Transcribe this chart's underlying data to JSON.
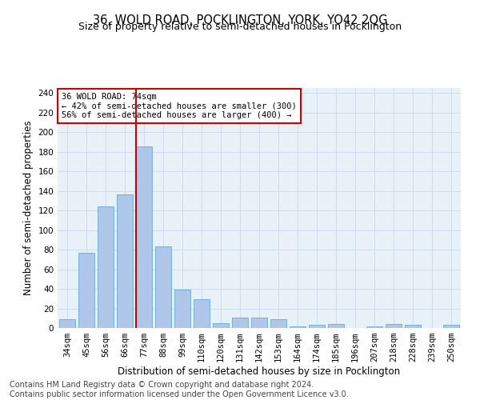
{
  "title1": "36, WOLD ROAD, POCKLINGTON, YORK, YO42 2QG",
  "title2": "Size of property relative to semi-detached houses in Pocklington",
  "xlabel": "Distribution of semi-detached houses by size in Pocklington",
  "ylabel": "Number of semi-detached properties",
  "footer1": "Contains HM Land Registry data © Crown copyright and database right 2024.",
  "footer2": "Contains public sector information licensed under the Open Government Licence v3.0.",
  "categories": [
    "34sqm",
    "45sqm",
    "56sqm",
    "66sqm",
    "77sqm",
    "88sqm",
    "99sqm",
    "110sqm",
    "120sqm",
    "131sqm",
    "142sqm",
    "153sqm",
    "164sqm",
    "174sqm",
    "185sqm",
    "196sqm",
    "207sqm",
    "218sqm",
    "228sqm",
    "239sqm",
    "250sqm"
  ],
  "values": [
    9,
    77,
    124,
    136,
    185,
    83,
    39,
    29,
    5,
    11,
    11,
    9,
    2,
    3,
    4,
    0,
    2,
    4,
    3,
    0,
    3
  ],
  "bar_color": "#aec6e8",
  "bar_edge_color": "#6aaad4",
  "vline_color": "#cc0000",
  "annotation_title": "36 WOLD ROAD: 74sqm",
  "annotation_line1": "← 42% of semi-detached houses are smaller (300)",
  "annotation_line2": "56% of semi-detached houses are larger (400) →",
  "annotation_box_color": "#cc0000",
  "ylim": [
    0,
    245
  ],
  "yticks": [
    0,
    20,
    40,
    60,
    80,
    100,
    120,
    140,
    160,
    180,
    200,
    220,
    240
  ],
  "grid_color": "#c8d8e8",
  "bg_color": "#e8f0f8",
  "title1_fontsize": 10.5,
  "title2_fontsize": 9,
  "xlabel_fontsize": 8.5,
  "ylabel_fontsize": 8.5,
  "tick_fontsize": 7.5,
  "footer_fontsize": 7,
  "ann_fontsize": 7.5
}
